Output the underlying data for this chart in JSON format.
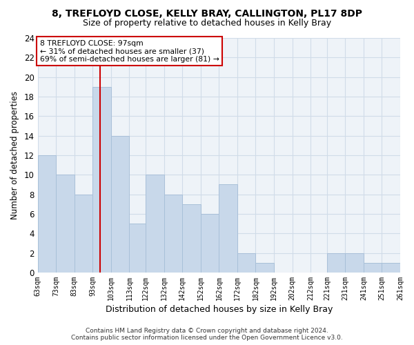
{
  "title": "8, TREFLOYD CLOSE, KELLY BRAY, CALLINGTON, PL17 8DP",
  "subtitle": "Size of property relative to detached houses in Kelly Bray",
  "xlabel": "Distribution of detached houses by size in Kelly Bray",
  "ylabel": "Number of detached properties",
  "bar_color": "#c8d8ea",
  "bar_edge_color": "#a8c0d8",
  "vline_color": "#cc0000",
  "vline_x": 97,
  "annotation_line1": "8 TREFLOYD CLOSE: 97sqm",
  "annotation_line2": "← 31% of detached houses are smaller (37)",
  "annotation_line3": "69% of semi-detached houses are larger (81) →",
  "annotation_box_color": "white",
  "annotation_box_edge_color": "#cc0000",
  "footer_text": "Contains HM Land Registry data © Crown copyright and database right 2024.\nContains public sector information licensed under the Open Government Licence v3.0.",
  "bins_left_edges": [
    63,
    73,
    83,
    93,
    103,
    113,
    122,
    132,
    142,
    152,
    162,
    172,
    182,
    192,
    202,
    212,
    221,
    231,
    241,
    251
  ],
  "bin_widths": [
    10,
    10,
    10,
    10,
    10,
    9,
    10,
    10,
    10,
    10,
    10,
    10,
    10,
    10,
    10,
    9,
    10,
    10,
    10,
    10
  ],
  "counts": [
    12,
    10,
    8,
    19,
    14,
    5,
    10,
    8,
    7,
    6,
    9,
    2,
    1,
    0,
    0,
    0,
    2,
    2,
    1,
    1
  ],
  "xlim": [
    63,
    261
  ],
  "ylim": [
    0,
    24
  ],
  "yticks": [
    0,
    2,
    4,
    6,
    8,
    10,
    12,
    14,
    16,
    18,
    20,
    22,
    24
  ],
  "xtick_labels": [
    "63sqm",
    "73sqm",
    "83sqm",
    "93sqm",
    "103sqm",
    "113sqm",
    "122sqm",
    "132sqm",
    "142sqm",
    "152sqm",
    "162sqm",
    "172sqm",
    "182sqm",
    "192sqm",
    "202sqm",
    "212sqm",
    "221sqm",
    "231sqm",
    "241sqm",
    "251sqm",
    "261sqm"
  ],
  "xtick_positions": [
    63,
    73,
    83,
    93,
    103,
    113,
    122,
    132,
    142,
    152,
    162,
    172,
    182,
    192,
    202,
    212,
    221,
    231,
    241,
    251,
    261
  ],
  "grid_color": "#d0dce8",
  "fig_background": "#ffffff",
  "plot_background": "#eef3f8"
}
